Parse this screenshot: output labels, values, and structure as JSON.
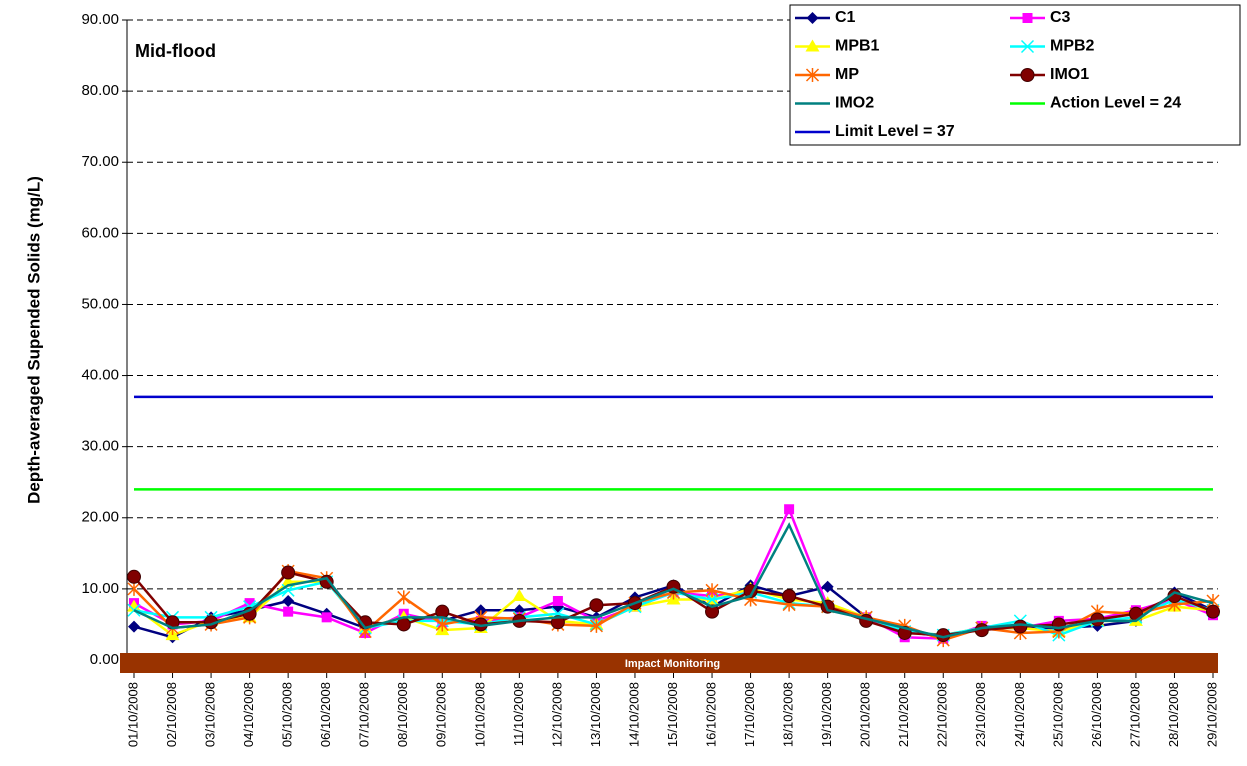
{
  "chart_data": {
    "type": "line",
    "y_label": "Depth-averaged Supended Solids (mg/L)",
    "annotations": [
      "Mid-flood",
      "Impact Monitoring"
    ],
    "categories": [
      "01/10/2008",
      "02/10/2008",
      "03/10/2008",
      "04/10/2008",
      "05/10/2008",
      "06/10/2008",
      "07/10/2008",
      "08/10/2008",
      "09/10/2008",
      "10/10/2008",
      "11/10/2008",
      "12/10/2008",
      "13/10/2008",
      "14/10/2008",
      "15/10/2008",
      "16/10/2008",
      "17/10/2008",
      "18/10/2008",
      "19/10/2008",
      "20/10/2008",
      "21/10/2008",
      "22/10/2008",
      "23/10/2008",
      "24/10/2008",
      "25/10/2008",
      "26/10/2008",
      "27/10/2008",
      "28/10/2008",
      "29/10/2008"
    ],
    "ylim": [
      0,
      90
    ],
    "yticks": [
      {
        "value": 0,
        "label": "0.00"
      },
      {
        "value": 10,
        "label": "10.00"
      },
      {
        "value": 20,
        "label": "20.00"
      },
      {
        "value": 30,
        "label": "30.00"
      },
      {
        "value": 40,
        "label": "40.00"
      },
      {
        "value": 50,
        "label": "50.00"
      },
      {
        "value": 60,
        "label": "60.00"
      },
      {
        "value": 70,
        "label": "70.00"
      },
      {
        "value": 80,
        "label": "80.00"
      },
      {
        "value": 90,
        "label": "90.00"
      }
    ],
    "grid": true,
    "legend": "upper right",
    "series": [
      {
        "name": "C1",
        "color": "#000080",
        "marker": "diamond",
        "values": [
          4.7,
          3.2,
          6.0,
          7.0,
          8.3,
          6.5,
          4.5,
          6.0,
          5.5,
          7.0,
          7.0,
          7.5,
          6.0,
          8.8,
          10.5,
          7.5,
          10.5,
          9.0,
          10.3,
          6.0,
          4.0,
          3.3,
          4.5,
          4.5,
          4.5,
          4.8,
          5.5,
          9.5,
          7.0
        ]
      },
      {
        "name": "C3",
        "color": "#ff00ff",
        "marker": "square",
        "values": [
          8.0,
          5.0,
          5.5,
          8.0,
          6.8,
          6.0,
          3.8,
          6.5,
          5.3,
          5.5,
          6.0,
          8.3,
          5.5,
          7.5,
          9.5,
          9.0,
          9.5,
          21.2,
          7.5,
          6.0,
          3.2,
          3.0,
          4.8,
          4.5,
          5.5,
          5.8,
          7.0,
          8.5,
          6.3
        ]
      },
      {
        "name": "MPB1",
        "color": "#ffff00",
        "marker": "triangle",
        "values": [
          7.5,
          3.5,
          5.5,
          6.0,
          11.0,
          11.0,
          4.5,
          6.0,
          4.2,
          4.5,
          9.0,
          5.5,
          5.0,
          7.5,
          8.5,
          8.5,
          10.0,
          8.5,
          8.0,
          6.0,
          4.0,
          3.5,
          4.5,
          4.5,
          4.0,
          5.5,
          5.5,
          7.5,
          7.0
        ]
      },
      {
        "name": "MPB2",
        "color": "#00ffff",
        "marker": "x",
        "values": [
          7.0,
          6.0,
          6.0,
          7.5,
          9.8,
          11.0,
          4.5,
          5.5,
          5.5,
          5.0,
          6.0,
          6.5,
          5.0,
          7.5,
          9.5,
          8.5,
          9.5,
          8.0,
          7.5,
          6.0,
          4.0,
          3.5,
          4.5,
          5.5,
          3.5,
          5.5,
          6.0,
          8.5,
          7.0
        ]
      },
      {
        "name": "MP",
        "color": "#ff6600",
        "marker": "star",
        "values": [
          10.0,
          4.5,
          5.0,
          6.0,
          12.5,
          11.5,
          4.0,
          8.8,
          5.0,
          6.0,
          5.8,
          5.0,
          4.8,
          8.0,
          9.5,
          9.8,
          8.5,
          7.8,
          7.5,
          6.0,
          4.8,
          2.8,
          4.5,
          3.8,
          4.0,
          6.8,
          6.5,
          7.8,
          8.3
        ]
      },
      {
        "name": "IMO1",
        "color": "#800000",
        "marker": "circle",
        "values": [
          11.7,
          5.3,
          5.3,
          6.5,
          12.3,
          11.0,
          5.3,
          5.0,
          6.8,
          5.0,
          5.5,
          5.3,
          7.7,
          8.0,
          10.3,
          6.8,
          9.7,
          9.0,
          7.5,
          5.5,
          3.8,
          3.5,
          4.2,
          4.7,
          5.0,
          5.7,
          6.5,
          9.0,
          6.8
        ]
      },
      {
        "name": "IMO2",
        "color": "#008080",
        "marker": "none",
        "values": [
          7.0,
          4.5,
          5.0,
          7.0,
          10.5,
          11.5,
          4.5,
          6.0,
          6.0,
          4.8,
          5.5,
          6.0,
          6.0,
          8.0,
          10.0,
          7.5,
          9.0,
          19.0,
          7.0,
          5.8,
          4.5,
          3.2,
          4.5,
          5.0,
          4.5,
          5.5,
          5.5,
          9.5,
          8.0
        ]
      },
      {
        "name": "Action Level = 24",
        "color": "#00ff00",
        "marker": "none",
        "values": [
          24,
          24,
          24,
          24,
          24,
          24,
          24,
          24,
          24,
          24,
          24,
          24,
          24,
          24,
          24,
          24,
          24,
          24,
          24,
          24,
          24,
          24,
          24,
          24,
          24,
          24,
          24,
          24,
          24
        ]
      },
      {
        "name": "Limit Level = 37",
        "color": "#0000cc",
        "marker": "none",
        "values": [
          37,
          37,
          37,
          37,
          37,
          37,
          37,
          37,
          37,
          37,
          37,
          37,
          37,
          37,
          37,
          37,
          37,
          37,
          37,
          37,
          37,
          37,
          37,
          37,
          37,
          37,
          37,
          37,
          37
        ]
      }
    ]
  }
}
